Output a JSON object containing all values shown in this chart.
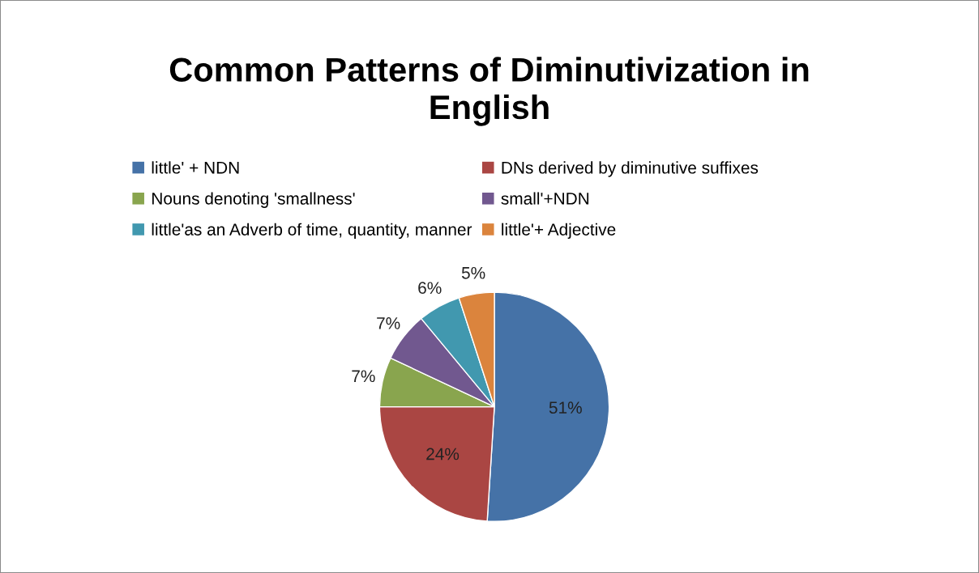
{
  "chart_data": {
    "type": "pie",
    "title": "Common Patterns of Diminutivization in\nEnglish",
    "categories": [
      "little' + NDN",
      "DNs derived by diminutive suffixes",
      "Nouns denoting 'smallness'",
      "small'+NDN",
      "little'as an Adverb of time, quantity, manner",
      "little'+ Adjective"
    ],
    "values": [
      51,
      24,
      7,
      7,
      6,
      5
    ],
    "colors": [
      "#4572a7",
      "#aa4643",
      "#89a54e",
      "#71588f",
      "#4198af",
      "#db843d"
    ],
    "value_labels": [
      "51%",
      "24%",
      "7%",
      "7%",
      "6%",
      "5%"
    ],
    "legend": "top"
  }
}
